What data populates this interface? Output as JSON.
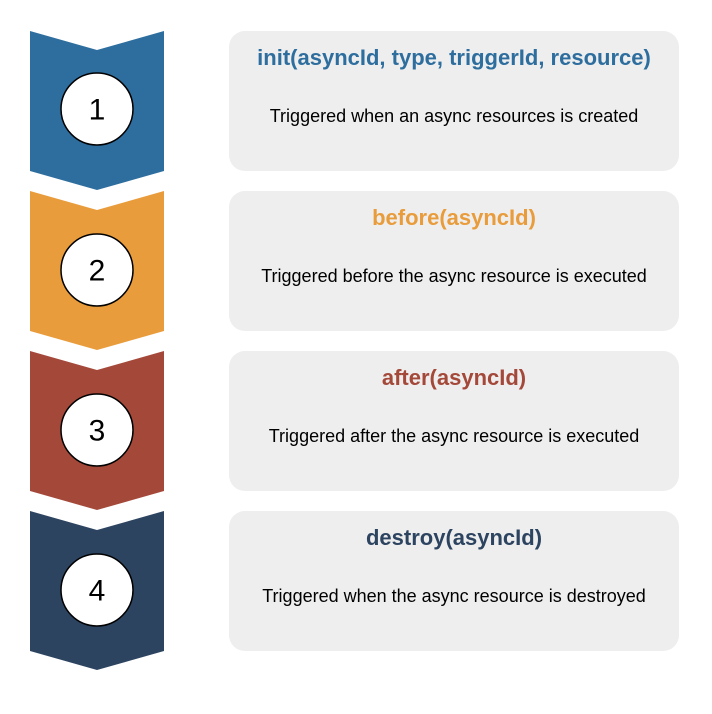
{
  "steps": [
    {
      "number": "1",
      "color": "#2e6e9e",
      "title": "init(asyncId, type, triggerId, resource)",
      "description": "Triggered when an async resources is created"
    },
    {
      "number": "2",
      "color": "#e99c3b",
      "title": "before(asyncId)",
      "description": "Triggered before the async resource is executed"
    },
    {
      "number": "3",
      "color": "#a4493a",
      "title": "after(asyncId)",
      "description": "Triggered after the async resource is executed"
    },
    {
      "number": "4",
      "color": "#2d4461",
      "title": "destroy(asyncId)",
      "description": "Triggered when the async resource is destroyed"
    }
  ]
}
